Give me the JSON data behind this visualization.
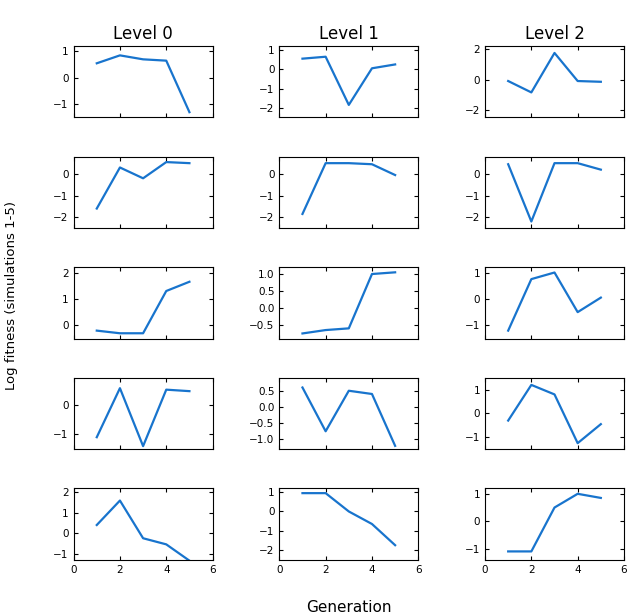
{
  "title_col": [
    "Level 0",
    "Level 1",
    "Level 2"
  ],
  "ylabel": "Log fitness (simulations 1-5)",
  "xlabel": "Generation",
  "line_color": "#1874CD",
  "line_width": 1.6,
  "plots": [
    [
      {
        "x": [
          1,
          2,
          3,
          4,
          5
        ],
        "y": [
          0.55,
          0.85,
          0.7,
          0.65,
          -1.3
        ],
        "ylim": [
          -1.5,
          1.2
        ],
        "yticks": [
          -1,
          0,
          1
        ]
      },
      {
        "x": [
          1,
          2,
          3,
          4,
          5
        ],
        "y": [
          -1.6,
          0.3,
          -0.2,
          0.55,
          0.5
        ],
        "ylim": [
          -2.5,
          0.8
        ],
        "yticks": [
          -2,
          -1,
          0
        ]
      },
      {
        "x": [
          1,
          2,
          3,
          4,
          5
        ],
        "y": [
          -0.2,
          -0.3,
          -0.3,
          1.3,
          1.65
        ],
        "ylim": [
          -0.5,
          2.2
        ],
        "yticks": [
          0,
          1,
          2
        ]
      },
      {
        "x": [
          1,
          2,
          3,
          4,
          5
        ],
        "y": [
          -1.1,
          0.55,
          -1.4,
          0.5,
          0.45
        ],
        "ylim": [
          -1.5,
          0.9
        ],
        "yticks": [
          -1,
          0
        ]
      },
      {
        "x": [
          1,
          2,
          3,
          4,
          5
        ],
        "y": [
          0.4,
          1.6,
          -0.25,
          -0.55,
          -1.35
        ],
        "ylim": [
          -1.3,
          2.2
        ],
        "yticks": [
          -1,
          0,
          1,
          2
        ]
      }
    ],
    [
      {
        "x": [
          1,
          2,
          3,
          4,
          5
        ],
        "y": [
          0.55,
          0.65,
          -1.85,
          0.05,
          0.25
        ],
        "ylim": [
          -2.5,
          1.2
        ],
        "yticks": [
          -2,
          -1,
          0,
          1
        ]
      },
      {
        "x": [
          1,
          2,
          3,
          4,
          5
        ],
        "y": [
          -1.85,
          0.5,
          0.5,
          0.45,
          -0.05
        ],
        "ylim": [
          -2.5,
          0.8
        ],
        "yticks": [
          -2,
          -1,
          0
        ]
      },
      {
        "x": [
          1,
          2,
          3,
          4,
          5
        ],
        "y": [
          -0.75,
          -0.65,
          -0.6,
          1.0,
          1.05
        ],
        "ylim": [
          -0.9,
          1.2
        ],
        "yticks": [
          -0.5,
          0,
          0.5,
          1
        ]
      },
      {
        "x": [
          1,
          2,
          3,
          4,
          5
        ],
        "y": [
          0.6,
          -0.75,
          0.5,
          0.4,
          -1.2
        ],
        "ylim": [
          -1.3,
          0.9
        ],
        "yticks": [
          -1,
          -0.5,
          0,
          0.5
        ]
      },
      {
        "x": [
          1,
          2,
          3,
          4,
          5
        ],
        "y": [
          0.95,
          0.95,
          0.0,
          -0.65,
          -1.75
        ],
        "ylim": [
          -2.5,
          1.2
        ],
        "yticks": [
          -2,
          -1,
          0,
          1
        ]
      }
    ],
    [
      {
        "x": [
          1,
          2,
          3,
          4,
          5
        ],
        "y": [
          -0.1,
          -0.85,
          1.75,
          -0.1,
          -0.15
        ],
        "ylim": [
          -2.5,
          2.2
        ],
        "yticks": [
          -2,
          0,
          2
        ]
      },
      {
        "x": [
          1,
          2,
          3,
          4,
          5
        ],
        "y": [
          0.45,
          -2.2,
          0.5,
          0.5,
          0.2
        ],
        "ylim": [
          -2.5,
          0.8
        ],
        "yticks": [
          -2,
          -1,
          0
        ]
      },
      {
        "x": [
          1,
          2,
          3,
          4,
          5
        ],
        "y": [
          -1.2,
          0.75,
          1.0,
          -0.5,
          0.05
        ],
        "ylim": [
          -1.5,
          1.2
        ],
        "yticks": [
          -1,
          0,
          1
        ]
      },
      {
        "x": [
          1,
          2,
          3,
          4,
          5
        ],
        "y": [
          -0.3,
          1.2,
          0.8,
          -1.25,
          -0.45
        ],
        "ylim": [
          -1.5,
          1.5
        ],
        "yticks": [
          -1,
          0,
          1
        ]
      },
      {
        "x": [
          1,
          2,
          3,
          4,
          5
        ],
        "y": [
          -1.1,
          -1.1,
          0.5,
          1.0,
          0.85
        ],
        "ylim": [
          -1.4,
          1.2
        ],
        "yticks": [
          -1,
          0,
          1
        ]
      }
    ]
  ]
}
